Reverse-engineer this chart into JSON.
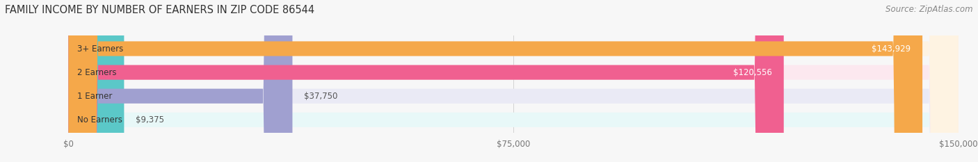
{
  "title": "FAMILY INCOME BY NUMBER OF EARNERS IN ZIP CODE 86544",
  "source": "Source: ZipAtlas.com",
  "categories": [
    "No Earners",
    "1 Earner",
    "2 Earners",
    "3+ Earners"
  ],
  "values": [
    9375,
    37750,
    120556,
    143929
  ],
  "labels": [
    "$9,375",
    "$37,750",
    "$120,556",
    "$143,929"
  ],
  "bar_colors": [
    "#5bc8c8",
    "#a0a0d0",
    "#f06090",
    "#f5a84a"
  ],
  "bg_colors": [
    "#e8f8f8",
    "#eaeaf5",
    "#fce8ef",
    "#fef3e2"
  ],
  "xlim": [
    0,
    150000
  ],
  "xticks": [
    0,
    75000,
    150000
  ],
  "xtick_labels": [
    "$0",
    "$75,000",
    "$150,000"
  ],
  "title_fontsize": 10.5,
  "source_fontsize": 8.5,
  "label_fontsize": 8.5,
  "bar_height": 0.62,
  "background_color": "#f7f7f7"
}
